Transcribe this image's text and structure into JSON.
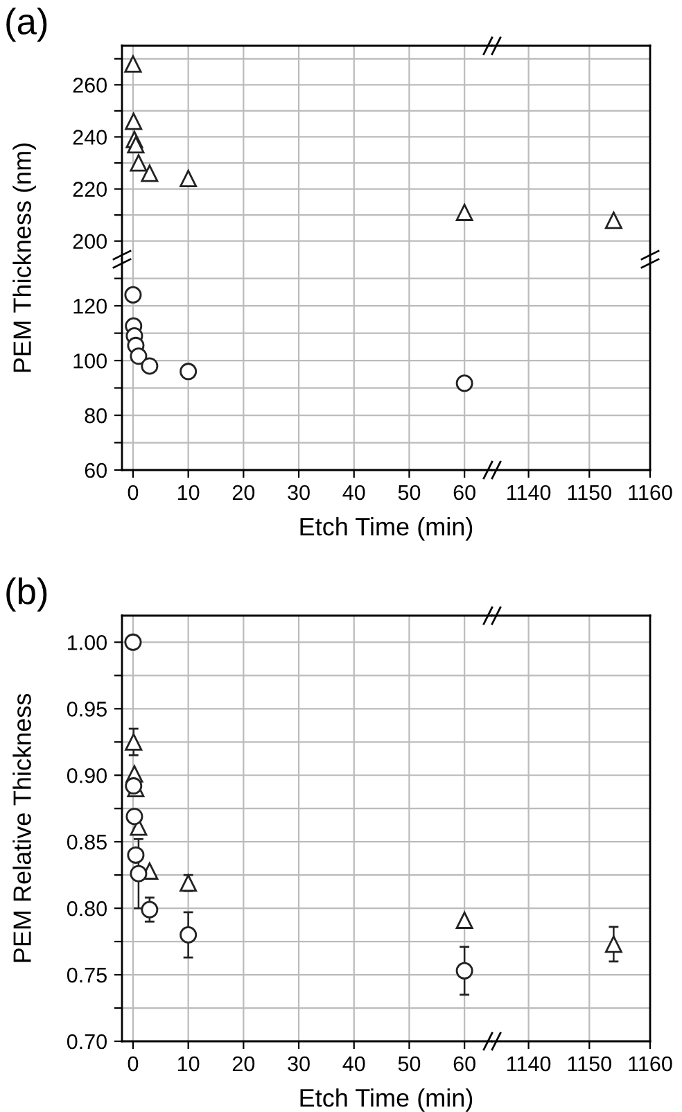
{
  "chart_data": [
    {
      "type": "scatter",
      "title": "(a)",
      "xlim": [
        -2,
        65
      ],
      "xticks": [
        0,
        10,
        20,
        30,
        40,
        50,
        60
      ],
      "ylim": [
        193,
        275
      ],
      "yticks": [
        200,
        {
          "value": 210,
          "label": null
        },
        220,
        {
          "value": 230,
          "label": null
        },
        240,
        {
          "value": 250,
          "label": null
        },
        260,
        {
          "value": 270,
          "label": null
        }
      ],
      "tick_labels": "y",
      "grid": true,
      "series": [
        {
          "color": "#222222",
          "marker": "triangle",
          "x": [
            0,
            0.1,
            0.25,
            0.5,
            1,
            3,
            10,
            60
          ],
          "values": [
            268,
            246,
            239,
            237,
            230,
            226,
            224,
            211
          ]
        }
      ]
    },
    {
      "type": "scatter",
      "xlim": [
        1134,
        1160
      ],
      "xticks": [
        1140,
        1150,
        1160
      ],
      "ylim": [
        193,
        275
      ],
      "yticks": [
        200,
        {
          "value": 210,
          "label": null
        },
        220,
        {
          "value": 230,
          "label": null
        },
        240,
        {
          "value": 250,
          "label": null
        },
        260,
        {
          "value": 270,
          "label": null
        }
      ],
      "tick_labels": false,
      "grid": true,
      "series": [
        {
          "color": "#222222",
          "marker": "triangle",
          "x": [
            1154
          ],
          "values": [
            208
          ]
        }
      ]
    },
    {
      "type": "scatter",
      "xlabel": "Etch Time (min)",
      "ylabel": "PEM Thickness (nm)",
      "xlim": [
        -2,
        65
      ],
      "xticks": [
        0,
        10,
        20,
        30,
        40,
        50,
        60
      ],
      "ylim": [
        60,
        137
      ],
      "yticks": [
        60,
        {
          "value": 70,
          "label": null
        },
        80,
        {
          "value": 90,
          "label": null
        },
        100,
        {
          "value": 110,
          "label": null
        },
        120,
        {
          "value": 130,
          "label": null
        }
      ],
      "grid": true,
      "series": [
        {
          "color": "#222222",
          "marker": "circle",
          "x": [
            0,
            0.1,
            0.25,
            0.5,
            1,
            3,
            10,
            60
          ],
          "values": [
            124,
            112.6,
            109,
            105.5,
            101.6,
            98,
            96,
            91.7
          ]
        }
      ]
    },
    {
      "type": "scatter",
      "xlim": [
        1134,
        1160
      ],
      "xticks": [
        1140,
        1150,
        1160
      ],
      "ylim": [
        60,
        137
      ],
      "yticks": [
        60,
        {
          "value": 70,
          "label": null
        },
        80,
        {
          "value": 90,
          "label": null
        },
        100,
        {
          "value": 110,
          "label": null
        },
        120,
        {
          "value": 130,
          "label": null
        }
      ],
      "tick_labels": "x",
      "grid": true
    },
    {
      "type": "scatter",
      "title": "(b)",
      "xlabel": "Etch Time (min)",
      "ylabel": "PEM Relative Thickness",
      "xlim": [
        -2,
        65
      ],
      "xticks": [
        0,
        10,
        20,
        30,
        40,
        50,
        60
      ],
      "ylim": [
        0.7,
        1.02
      ],
      "yticks": [
        {
          "value": 0.7,
          "label": "0.70"
        },
        {
          "value": 0.725,
          "label": null
        },
        {
          "value": 0.75,
          "label": "0.75"
        },
        {
          "value": 0.775,
          "label": null
        },
        {
          "value": 0.8,
          "label": "0.80"
        },
        {
          "value": 0.825,
          "label": null
        },
        {
          "value": 0.85,
          "label": "0.85"
        },
        {
          "value": 0.875,
          "label": null
        },
        {
          "value": 0.9,
          "label": "0.90"
        },
        {
          "value": 0.925,
          "label": null
        },
        {
          "value": 0.95,
          "label": "0.95"
        },
        {
          "value": 0.975,
          "label": null
        },
        {
          "value": 1.0,
          "label": "1.00"
        }
      ],
      "grid": true,
      "series": [
        {
          "color": "#222222",
          "marker": "triangle",
          "x": [
            0.1,
            0.25,
            0.5,
            1,
            3,
            10,
            60
          ],
          "values": [
            0.925,
            0.901,
            0.89,
            0.861,
            0.828,
            0.819,
            0.791
          ],
          "errors": [
            0.01,
            null,
            null,
            null,
            null,
            0.006,
            null
          ]
        },
        {
          "color": "#222222",
          "marker": "circle",
          "x": [
            0,
            0.1,
            0.25,
            0.5,
            1,
            3,
            10,
            60
          ],
          "values": [
            1.0,
            0.892,
            0.869,
            0.84,
            0.826,
            0.799,
            0.78,
            0.753
          ],
          "errors": [
            null,
            null,
            null,
            null,
            0.026,
            0.009,
            0.017,
            0.018
          ]
        }
      ]
    },
    {
      "type": "scatter",
      "xlim": [
        1134,
        1160
      ],
      "xticks": [
        1140,
        1150,
        1160
      ],
      "ylim": [
        0.7,
        1.02
      ],
      "yticks": [
        0.7,
        0.725,
        0.75,
        0.775,
        0.8,
        0.825,
        0.85,
        0.875,
        0.9,
        0.925,
        0.95,
        0.975,
        1.0
      ],
      "tick_labels": "x",
      "grid": true,
      "series": [
        {
          "color": "#222222",
          "marker": "triangle",
          "x": [
            1154
          ],
          "values": [
            0.773
          ],
          "errors": [
            0.013
          ]
        }
      ]
    }
  ]
}
